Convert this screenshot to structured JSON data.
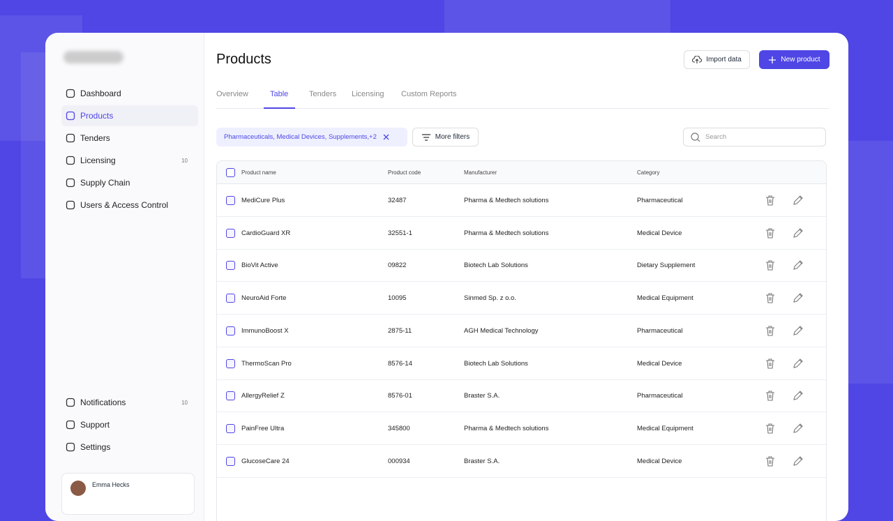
{
  "sidebar": {
    "nav": [
      {
        "label": "Dashboard"
      },
      {
        "label": "Products"
      },
      {
        "label": "Tenders"
      },
      {
        "label": "Licensing",
        "badge": "10"
      },
      {
        "label": "Supply Chain"
      },
      {
        "label": "Users & Access Control"
      }
    ],
    "bottom_nav": [
      {
        "label": "Notifications",
        "badge": "10"
      },
      {
        "label": "Support"
      },
      {
        "label": "Settings"
      }
    ],
    "user": {
      "name": "Emma Hecks"
    }
  },
  "header": {
    "title": "Products",
    "buttons": [
      "Import data",
      "New product"
    ]
  },
  "tabs": [
    "Overview",
    "Table",
    "Tenders",
    "Licensing",
    "Custom Reports"
  ],
  "filters": {
    "chip": "Pharmaceuticals, Medical Devices, Supplements,+2",
    "more": "More filters",
    "search_placeholder": "Search"
  },
  "table": {
    "columns": [
      "Product name",
      "Product code",
      "Manufacturer",
      "Category"
    ],
    "rows": [
      [
        "MediCure Plus",
        "32487",
        "Pharma & Medtech solutions",
        "Pharmaceutical"
      ],
      [
        "CardioGuard XR",
        "32551-1",
        "Pharma & Medtech solutions",
        "Medical Device"
      ],
      [
        "BioVit Active",
        "09822",
        "Biotech Lab Solutions",
        "Dietary Supplement"
      ],
      [
        "NeuroAid Forte",
        "10095",
        "Sinmed Sp. z o.o.",
        "Medical Equipment"
      ],
      [
        "ImmunoBoost X",
        "2875-11",
        "AGH Medical Technology",
        "Pharmaceutical"
      ],
      [
        "ThermoScan Pro",
        "8576-14",
        "Biotech Lab Solutions",
        "Medical Device"
      ],
      [
        "AllergyRelief Z",
        "8576-01",
        "Braster S.A.",
        "Pharmaceutical"
      ],
      [
        "PainFree Ultra",
        "345800",
        "Pharma & Medtech solutions",
        "Medical Equipment"
      ],
      [
        "GlucoseCare 24",
        "000934",
        "Braster S.A.",
        "Medical Device"
      ]
    ]
  }
}
